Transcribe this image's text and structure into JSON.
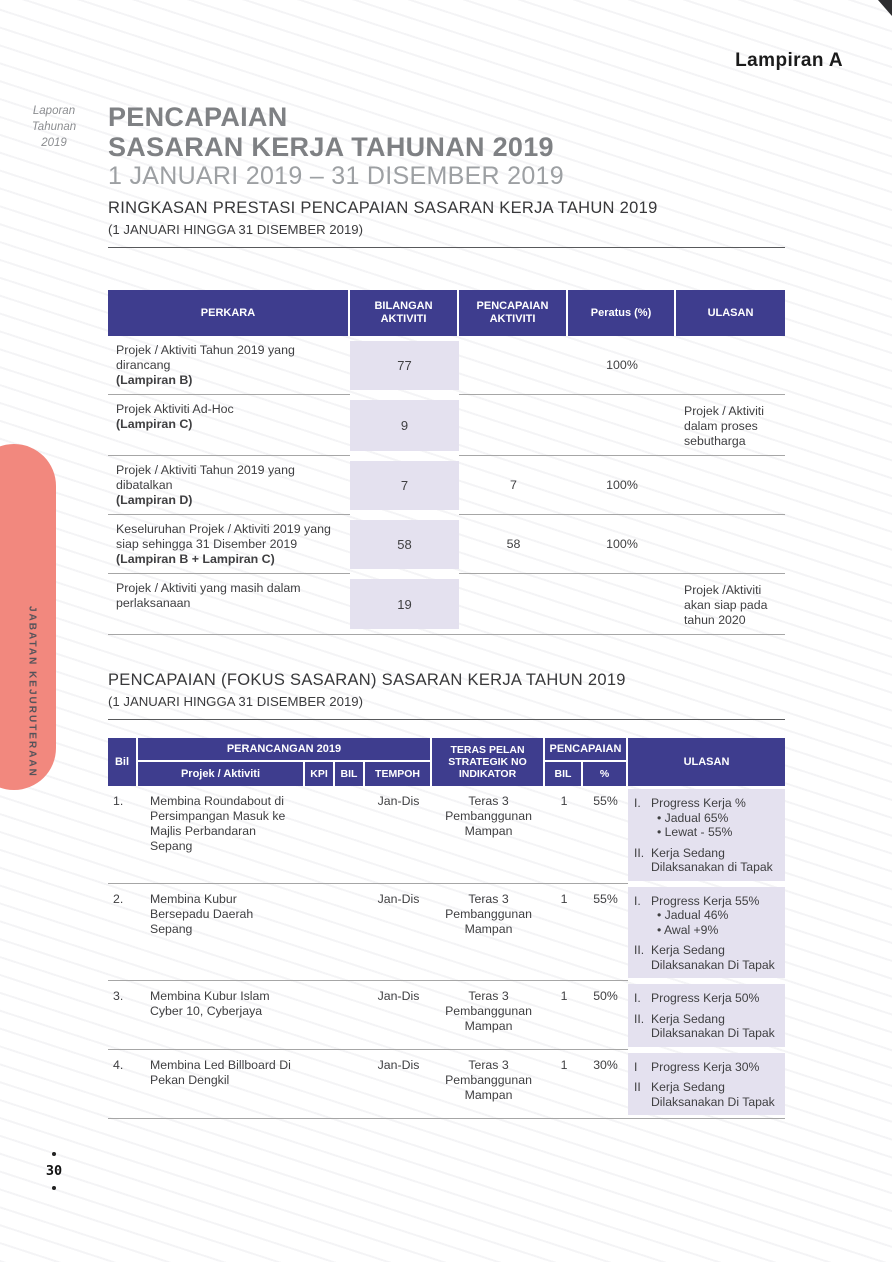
{
  "page": {
    "corner_label": "Lampiran A",
    "side_note": {
      "line1": "Laporan",
      "line2": "Tahunan",
      "line3": "2019"
    },
    "sidebar_vertical_text": "JABATAN KEJURUTERAAN",
    "page_number": "30"
  },
  "title": {
    "line1": "PENCAPAIAN",
    "line2": "SASARAN KERJA TAHUNAN 2019",
    "line3": "1 JANUARI 2019 – 31 DISEMBER 2019"
  },
  "section1": {
    "heading": "RINGKASAN PRESTASI PENCAPAIAN SASARAN KERJA TAHUN 2019",
    "subheading": "(1 JANUARI HINGGA 31 DISEMBER 2019)"
  },
  "table1": {
    "headers": {
      "perkara": "PERKARA",
      "bilangan": "BILANGAN AKTIVITI",
      "pencapaian": "PENCAPAIAN AKTIVITI",
      "peratus": "Peratus (%)",
      "ulasan": "ULASAN"
    },
    "rows": [
      {
        "perkara": "Projek / Aktiviti Tahun 2019 yang dirancang",
        "perkara_bold": "(Lampiran B)",
        "bilangan": "77",
        "pencapaian": "",
        "peratus": "100%",
        "ulasan": ""
      },
      {
        "perkara": "Projek Aktiviti Ad-Hoc",
        "perkara_bold": "(Lampiran C)",
        "bilangan": "9",
        "pencapaian": "",
        "peratus": "",
        "ulasan": "Projek / Aktiviti dalam proses sebutharga"
      },
      {
        "perkara": "Projek / Aktiviti Tahun 2019 yang dibatalkan",
        "perkara_bold": "(Lampiran D)",
        "bilangan": "7",
        "pencapaian": "7",
        "peratus": "100%",
        "ulasan": ""
      },
      {
        "perkara": "Keseluruhan Projek / Aktiviti 2019  yang siap sehingga 31 Disember 2019",
        "perkara_bold": "(Lampiran B + Lampiran C)",
        "bilangan": "58",
        "pencapaian": "58",
        "peratus": "100%",
        "ulasan": ""
      },
      {
        "perkara": "Projek / Aktiviti yang masih dalam perlaksanaan",
        "perkara_bold": "",
        "bilangan": "19",
        "pencapaian": "",
        "peratus": "",
        "ulasan": "Projek /Aktiviti akan siap pada tahun 2020"
      }
    ]
  },
  "section2": {
    "heading": "PENCAPAIAN (FOKUS SASARAN) SASARAN KERJA TAHUN 2019",
    "subheading": "(1 JANUARI HINGGA 31 DISEMBER 2019)"
  },
  "table2": {
    "bullet_char": "•",
    "headers": {
      "bil": "Bil",
      "perancangan": "PERANCANGAN 2019",
      "projek": "Projek / Aktiviti",
      "kpi": "KPI",
      "bil2": "BIL",
      "tempoh": "TEMPOH",
      "teras": "TERAS PELAN STRATEGIK NO INDIKATOR",
      "pencapaian": "PENCAPAIAN",
      "pbil": "BIL",
      "ppct": "%",
      "ulasan": "ULASAN"
    },
    "rows": [
      {
        "no": "1.",
        "projek": "Membina Roundabout di Persimpangan Masuk ke Majlis Perbandaran Sepang",
        "kpi": "",
        "bil": "",
        "tempoh": "Jan-Dis",
        "teras": "Teras 3 Pembanggunan Mampan",
        "pbil": "1",
        "ppct": "55%",
        "ulasan_items": [
          {
            "marker": "I.",
            "text": "Progress Kerja %",
            "bullets": [
              "Jadual  65%",
              "Lewat - 55%"
            ]
          },
          {
            "marker": "II.",
            "text": "Kerja Sedang Dilaksanakan di Tapak",
            "bullets": []
          }
        ]
      },
      {
        "no": "2.",
        "projek": "Membina Kubur Bersepadu Daerah Sepang",
        "kpi": "",
        "bil": "",
        "tempoh": "Jan-Dis",
        "teras": "Teras 3 Pembanggunan Mampan",
        "pbil": "1",
        "ppct": "55%",
        "ulasan_items": [
          {
            "marker": "I.",
            "text": "Progress Kerja 55%",
            "bullets": [
              "Jadual 46%",
              "Awal +9%"
            ]
          },
          {
            "marker": "II.",
            "text": "Kerja Sedang Dilaksanakan Di Tapak",
            "bullets": []
          }
        ]
      },
      {
        "no": "3.",
        "projek": "Membina Kubur Islam Cyber 10, Cyberjaya",
        "kpi": "",
        "bil": "",
        "tempoh": "Jan-Dis",
        "teras": "Teras 3 Pembanggunan Mampan",
        "pbil": "1",
        "ppct": "50%",
        "ulasan_items": [
          {
            "marker": "I.",
            "text": "Progress Kerja  50%",
            "bullets": []
          },
          {
            "marker": "II.",
            "text": "Kerja Sedang Dilaksanakan Di Tapak",
            "bullets": []
          }
        ]
      },
      {
        "no": "4.",
        "projek": "Membina Led Billboard Di Pekan Dengkil",
        "kpi": "",
        "bil": "",
        "tempoh": "Jan-Dis",
        "teras": "Teras 3 Pembanggunan Mampan",
        "pbil": "1",
        "ppct": "30%",
        "ulasan_items": [
          {
            "marker": "I",
            "text": "Progress Kerja  30%",
            "bullets": []
          },
          {
            "marker": "II",
            "text": "Kerja Sedang Dilaksanakan Di Tapak",
            "bullets": []
          }
        ]
      }
    ]
  },
  "colors": {
    "header_purple": "#3e3d8e",
    "lavender": "#e4e1ef",
    "pink": "#f2887e",
    "rule_gray": "#58595b",
    "row_line": "#a6a6a6",
    "title_gray": "#7f8184",
    "subtitle_gray": "#9da0a3",
    "text_dark": "#3f3f41",
    "page_black": "#1b1b1b"
  }
}
